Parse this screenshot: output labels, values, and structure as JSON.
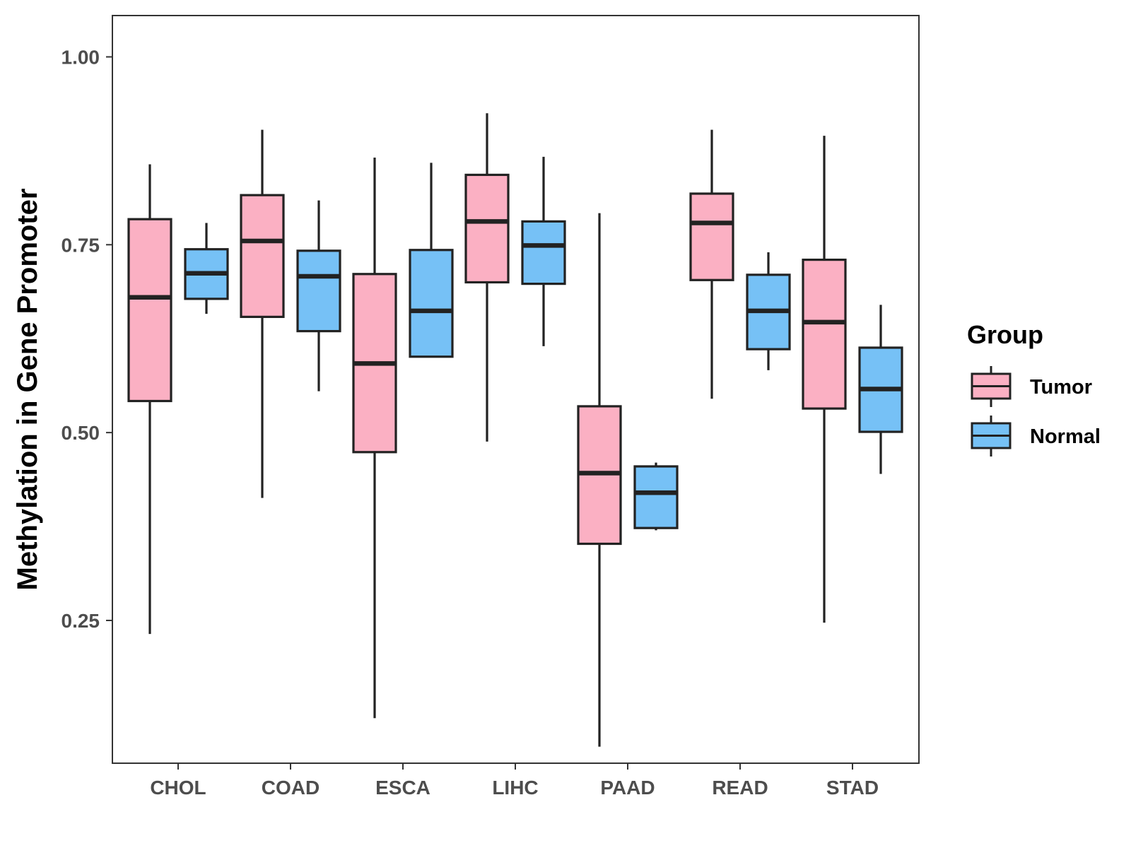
{
  "chart_data": {
    "type": "boxplot",
    "title": "",
    "xlabel": "",
    "ylabel": "Methylation in Gene Promoter",
    "ylim": [
      0.06,
      1.055
    ],
    "yticks": [
      0.25,
      0.5,
      0.75,
      1.0
    ],
    "ytick_labels": [
      "0.25",
      "0.50",
      "0.75",
      "1.00"
    ],
    "grid": false,
    "categories": [
      "CHOL",
      "COAD",
      "ESCA",
      "LIHC",
      "PAAD",
      "READ",
      "STAD"
    ],
    "legend": {
      "title": "Group",
      "position": "right",
      "entries": [
        {
          "name": "Tumor",
          "color": "#FBB0C3"
        },
        {
          "name": "Normal",
          "color": "#76C1F6"
        }
      ]
    },
    "series": [
      {
        "name": "Tumor",
        "color": "#FBB0C3",
        "boxes": [
          {
            "category": "CHOL",
            "whisker_low": 0.232,
            "q1": 0.542,
            "median": 0.68,
            "q3": 0.784,
            "whisker_high": 0.857
          },
          {
            "category": "COAD",
            "whisker_low": 0.413,
            "q1": 0.654,
            "median": 0.755,
            "q3": 0.816,
            "whisker_high": 0.903
          },
          {
            "category": "ESCA",
            "whisker_low": 0.12,
            "q1": 0.474,
            "median": 0.592,
            "q3": 0.711,
            "whisker_high": 0.866
          },
          {
            "category": "LIHC",
            "whisker_low": 0.488,
            "q1": 0.7,
            "median": 0.781,
            "q3": 0.843,
            "whisker_high": 0.925
          },
          {
            "category": "PAAD",
            "whisker_low": 0.082,
            "q1": 0.352,
            "median": 0.446,
            "q3": 0.535,
            "whisker_high": 0.792
          },
          {
            "category": "READ",
            "whisker_low": 0.545,
            "q1": 0.703,
            "median": 0.779,
            "q3": 0.818,
            "whisker_high": 0.903
          },
          {
            "category": "STAD",
            "whisker_low": 0.247,
            "q1": 0.532,
            "median": 0.647,
            "q3": 0.73,
            "whisker_high": 0.895
          }
        ]
      },
      {
        "name": "Normal",
        "color": "#76C1F6",
        "boxes": [
          {
            "category": "CHOL",
            "whisker_low": 0.658,
            "q1": 0.678,
            "median": 0.712,
            "q3": 0.744,
            "whisker_high": 0.779
          },
          {
            "category": "COAD",
            "whisker_low": 0.555,
            "q1": 0.635,
            "median": 0.708,
            "q3": 0.742,
            "whisker_high": 0.809
          },
          {
            "category": "ESCA",
            "whisker_low": 0.601,
            "q1": 0.601,
            "median": 0.662,
            "q3": 0.743,
            "whisker_high": 0.859
          },
          {
            "category": "LIHC",
            "whisker_low": 0.615,
            "q1": 0.698,
            "median": 0.749,
            "q3": 0.781,
            "whisker_high": 0.867
          },
          {
            "category": "PAAD",
            "whisker_low": 0.37,
            "q1": 0.373,
            "median": 0.42,
            "q3": 0.455,
            "whisker_high": 0.46
          },
          {
            "category": "READ",
            "whisker_low": 0.583,
            "q1": 0.611,
            "median": 0.662,
            "q3": 0.71,
            "whisker_high": 0.74
          },
          {
            "category": "STAD",
            "whisker_low": 0.445,
            "q1": 0.501,
            "median": 0.558,
            "q3": 0.613,
            "whisker_high": 0.67
          }
        ]
      }
    ]
  },
  "colors": {
    "tumor": "#FBB0C3",
    "normal": "#76C1F6",
    "box_outline": "#222222",
    "axis": "#333333",
    "tick_label": "#4d4d4d"
  }
}
